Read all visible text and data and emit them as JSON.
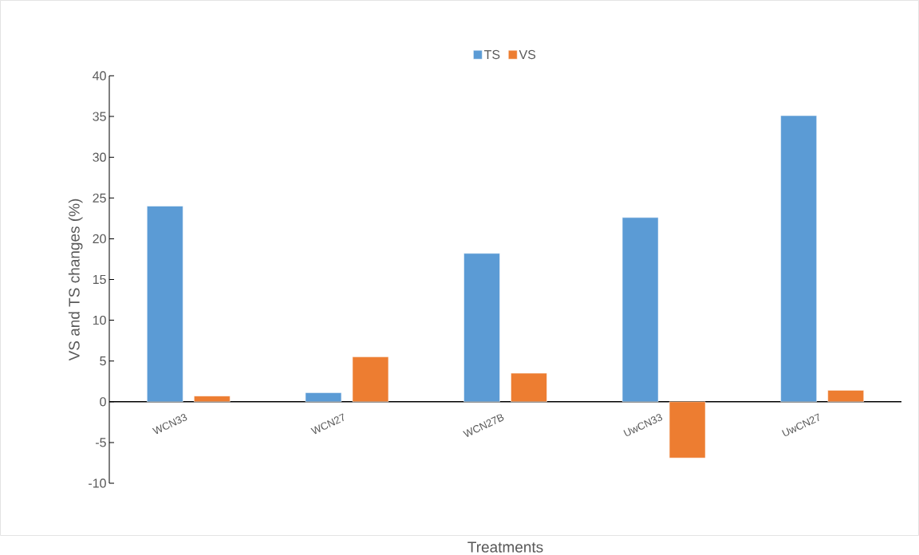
{
  "chart_data": {
    "type": "bar",
    "xlabel": "Treatments",
    "ylabel": "VS and TS changes (%)",
    "categories": [
      "WCN33",
      "WCN27",
      "WCN27B",
      "UwCN33",
      "UwCN27"
    ],
    "series": [
      {
        "name": "TS",
        "color": "#5b9bd5",
        "values": [
          24.0,
          1.1,
          18.2,
          22.6,
          35.1
        ]
      },
      {
        "name": "VS",
        "color": "#ed7d31",
        "values": [
          0.7,
          5.5,
          3.5,
          -6.9,
          1.4
        ]
      }
    ],
    "ylim": [
      -10,
      40
    ],
    "yticks": [
      -10,
      -5,
      0,
      5,
      10,
      15,
      20,
      25,
      30,
      35,
      40
    ],
    "grid": false,
    "legend": "top"
  }
}
